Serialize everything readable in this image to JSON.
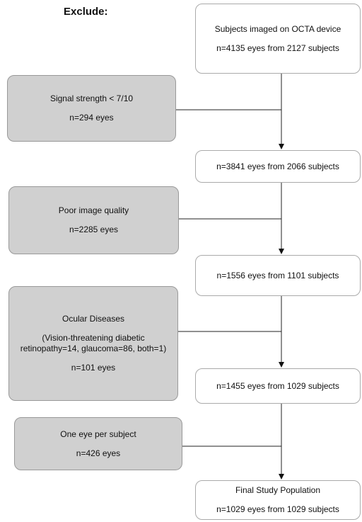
{
  "header": {
    "title": "Exclude:"
  },
  "main_boxes": [
    {
      "lines": [
        "Subjects imaged on OCTA device",
        "n=4135 eyes from 2127 subjects"
      ]
    },
    {
      "lines": [
        "n=3841 eyes from 2066 subjects"
      ]
    },
    {
      "lines": [
        "n=1556 eyes from 1101 subjects"
      ]
    },
    {
      "lines": [
        "n=1455 eyes from 1029 subjects"
      ]
    },
    {
      "lines": [
        "Final Study Population",
        "n=1029 eyes from 1029 subjects"
      ]
    }
  ],
  "exclusion_boxes": [
    {
      "lines": [
        "Signal strength < 7/10",
        "n=294 eyes"
      ]
    },
    {
      "lines": [
        "Poor image quality",
        "n=2285 eyes"
      ]
    },
    {
      "lines": [
        "Ocular Diseases",
        "(Vision-threatening diabetic retinopathy=14, glaucoma=86, both=1)",
        "n=101 eyes"
      ]
    },
    {
      "lines": [
        "One eye per subject",
        "n=426 eyes"
      ]
    }
  ]
}
